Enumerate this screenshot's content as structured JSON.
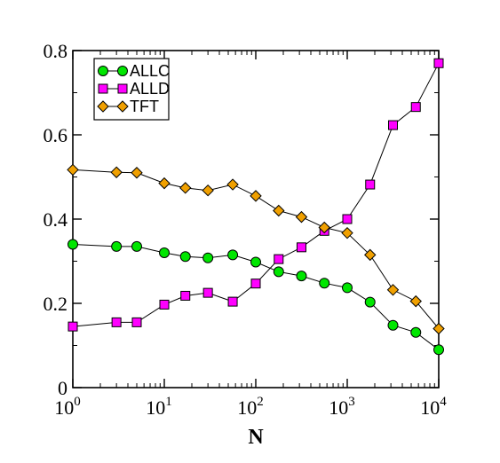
{
  "chart_data": {
    "type": "line",
    "xlabel": "N",
    "ylabel": "",
    "xscale": "log",
    "xlim": [
      1,
      10000
    ],
    "ylim": [
      0,
      0.8
    ],
    "yticks": [
      "0",
      "0.2",
      "0.4",
      "0.6",
      "0.8"
    ],
    "xticks": [
      {
        "base": "10",
        "exp": "0"
      },
      {
        "base": "10",
        "exp": "1"
      },
      {
        "base": "10",
        "exp": "2"
      },
      {
        "base": "10",
        "exp": "3"
      },
      {
        "base": "10",
        "exp": "4"
      }
    ],
    "grid": false,
    "legend_position": "top-left",
    "x": [
      1,
      3,
      5,
      10,
      17,
      30,
      56,
      100,
      178,
      316,
      562,
      1000,
      1778,
      3162,
      5623,
      10000
    ],
    "series": [
      {
        "name": "ALLC",
        "marker": "circle",
        "color": "#00e600",
        "values": [
          0.34,
          0.335,
          0.335,
          0.32,
          0.311,
          0.308,
          0.315,
          0.298,
          0.275,
          0.265,
          0.248,
          0.237,
          0.203,
          0.148,
          0.131,
          0.09
        ]
      },
      {
        "name": "ALLD",
        "marker": "square",
        "color": "#ff00ff",
        "values": [
          0.145,
          0.155,
          0.155,
          0.197,
          0.218,
          0.225,
          0.204,
          0.247,
          0.305,
          0.333,
          0.372,
          0.4,
          0.482,
          0.623,
          0.666,
          0.77
        ]
      },
      {
        "name": "TFT",
        "marker": "diamond",
        "color": "#f0a000",
        "values": [
          0.517,
          0.511,
          0.51,
          0.485,
          0.474,
          0.468,
          0.482,
          0.455,
          0.42,
          0.405,
          0.38,
          0.367,
          0.315,
          0.232,
          0.205,
          0.14
        ]
      }
    ]
  }
}
